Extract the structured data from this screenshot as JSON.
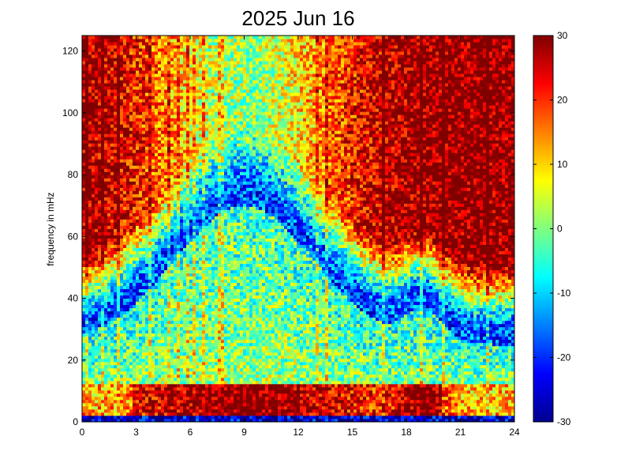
{
  "chart_data": {
    "type": "heatmap",
    "title": "2025 Jun 16",
    "xlabel": "",
    "ylabel": "frequency in mHz",
    "x_ticks": [
      "0",
      "3",
      "6",
      "9",
      "12",
      "15",
      "18",
      "21",
      "24"
    ],
    "x_range": [
      0,
      24
    ],
    "y_ticks": [
      "0",
      "20",
      "40",
      "60",
      "80",
      "100",
      "120"
    ],
    "y_range": [
      0,
      125
    ],
    "colorbar": {
      "ticks": [
        "30",
        "20",
        "10",
        "0",
        "-10",
        "-20",
        "-30"
      ],
      "range": [
        -30,
        30
      ],
      "colormap": "jet"
    },
    "description_bands": [
      {
        "freq_range": [
          0,
          1.5
        ],
        "level": -25
      },
      {
        "freq_range": [
          2,
          12
        ],
        "level": 24,
        "strongest_hours": [
          3,
          19
        ]
      },
      {
        "freq_range": [
          12,
          40
        ],
        "level": 5
      },
      {
        "freq_range": [
          40,
          70
        ],
        "level": -10
      },
      {
        "freq_range": [
          70,
          125
        ],
        "level": 28,
        "note": "background at edges of day"
      }
    ]
  }
}
